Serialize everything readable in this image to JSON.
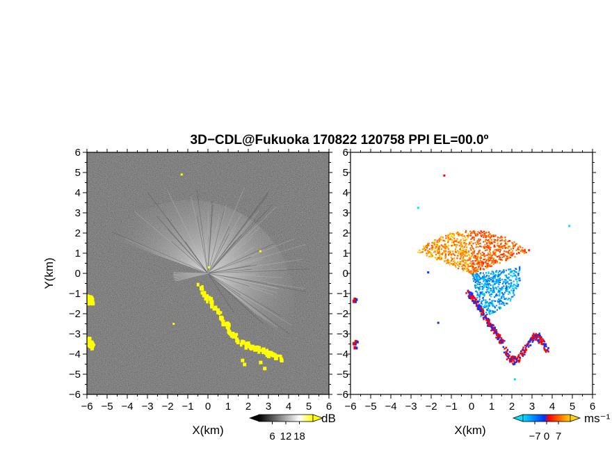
{
  "chart_data": {
    "type": "heatmap",
    "title": "3D−CDL@Fukuoka 170822 120758 PPI EL=00.0º",
    "panels": [
      {
        "name": "left",
        "quantity": "backscatter",
        "xlabel": "X(km)",
        "ylabel": "Y(km)",
        "xlim": [
          -6,
          6
        ],
        "ylim": [
          -6,
          6
        ],
        "xticks": [
          "−6",
          "−5",
          "−4",
          "−3",
          "−2",
          "−1",
          "0",
          "1",
          "2",
          "3",
          "4",
          "5",
          "6"
        ],
        "yticks": [
          "−6",
          "−5",
          "−4",
          "−3",
          "−2",
          "−1",
          "0",
          "1",
          "2",
          "3",
          "4",
          "5",
          "6"
        ],
        "colorbar": {
          "unit": "dB",
          "ticks": [
            "6",
            "12",
            "18"
          ],
          "colors": [
            "#000000",
            "#ffffff",
            "#ffff00"
          ]
        },
        "highlight_color": "#ffff00",
        "highlight_features": [
          {
            "x": [
              -0.4,
              1.4
            ],
            "y": [
              -0.6,
              -3.3
            ]
          },
          {
            "x": [
              1.6,
              3.6
            ],
            "y": [
              -3.4,
              -4.2
            ]
          },
          {
            "x": [
              -5.9,
              -5.8
            ],
            "y": [
              -3.3,
              -3.6
            ]
          },
          {
            "x": [
              -5.9,
              -5.8
            ],
            "y": [
              -1.2,
              -1.4
            ]
          }
        ]
      },
      {
        "name": "right",
        "quantity": "radial velocity",
        "xlabel": "X(km)",
        "ylabel": "",
        "xlim": [
          -6,
          6
        ],
        "ylim": [
          -6,
          6
        ],
        "xticks": [
          "−6",
          "−5",
          "−4",
          "−3",
          "−2",
          "−1",
          "0",
          "1",
          "2",
          "3",
          "4",
          "5",
          "6"
        ],
        "colorbar": {
          "unit": "ms⁻¹",
          "ticks": [
            "−7",
            "0",
            "7"
          ],
          "range": [
            -7,
            7
          ],
          "colors": [
            "#00e0ff",
            "#0033ff",
            "#ff0000",
            "#ffd200"
          ]
        }
      }
    ]
  }
}
